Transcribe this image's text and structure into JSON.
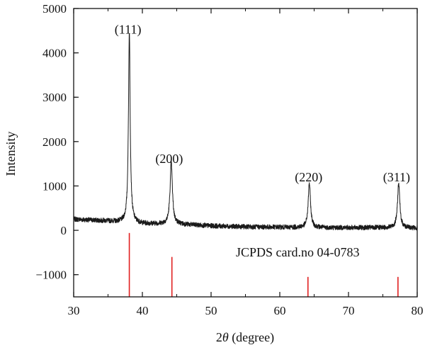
{
  "chart_data": {
    "type": "line",
    "title": "",
    "xlabel_prefix": "2",
    "xlabel_symbol": "θ",
    "xlabel_suffix": " (degree)",
    "ylabel": "Intensity",
    "xlim": [
      30,
      80
    ],
    "ylim": [
      -1500,
      5000
    ],
    "x_ticks": [
      30,
      40,
      50,
      60,
      70,
      80
    ],
    "y_ticks": [
      -1000,
      0,
      1000,
      2000,
      3000,
      4000,
      5000
    ],
    "y_tick_labels": [
      "−1000",
      "0",
      "1000",
      "2000",
      "3000",
      "4000",
      "5000"
    ],
    "grid": false,
    "series": [
      {
        "color": "#1a1a1a",
        "baseline": [
          [
            30,
            250
          ],
          [
            35,
            210
          ],
          [
            40,
            150
          ],
          [
            45,
            140
          ],
          [
            50,
            100
          ],
          [
            55,
            80
          ],
          [
            60,
            70
          ],
          [
            65,
            60
          ],
          [
            70,
            60
          ],
          [
            75,
            60
          ],
          [
            80,
            50
          ]
        ],
        "peaks": [
          {
            "center": 38.1,
            "height": 4300,
            "width": 0.15
          },
          {
            "center": 44.2,
            "height": 1400,
            "width": 0.2
          },
          {
            "center": 64.3,
            "height": 1000,
            "width": 0.2
          },
          {
            "center": 77.3,
            "height": 1000,
            "width": 0.2
          }
        ],
        "noise": 55
      }
    ],
    "peak_annotations": [
      {
        "label": "(111)",
        "x": 37.9,
        "y": 4430
      },
      {
        "label": "(200)",
        "x": 43.9,
        "y": 1520
      },
      {
        "label": "(220)",
        "x": 64.2,
        "y": 1100
      },
      {
        "label": "(311)",
        "x": 77.0,
        "y": 1100
      }
    ],
    "reference": {
      "label": "JCPDS card.no 04-0783",
      "color": "#e02020",
      "lines": [
        {
          "x": 38.1,
          "top": -60,
          "bottom": -1500
        },
        {
          "x": 44.3,
          "top": -600,
          "bottom": -1500
        },
        {
          "x": 64.1,
          "top": -1050,
          "bottom": -1500
        },
        {
          "x": 77.2,
          "top": -1050,
          "bottom": -1500
        }
      ]
    }
  }
}
